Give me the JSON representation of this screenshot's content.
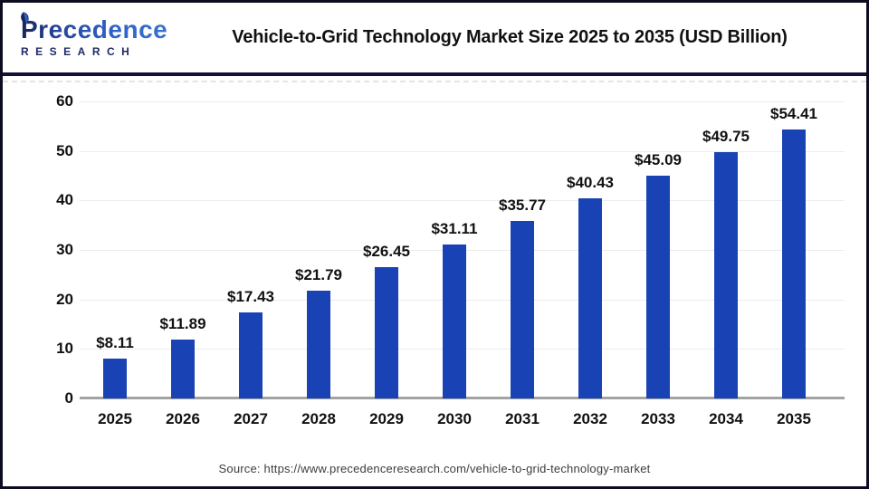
{
  "header": {
    "logo": {
      "primary": "Precedence",
      "secondary": "RESEARCH"
    },
    "title": "Vehicle-to-Grid Technology Market Size 2025 to 2035 (USD Billion)"
  },
  "chart_data": {
    "type": "bar",
    "title": "Vehicle-to-Grid Technology Market Size 2025 to 2035 (USD Billion)",
    "unit": "USD Billion",
    "categories": [
      "2025",
      "2026",
      "2027",
      "2028",
      "2029",
      "2030",
      "2031",
      "2032",
      "2033",
      "2034",
      "2035"
    ],
    "values": [
      8.11,
      11.89,
      17.43,
      21.79,
      26.45,
      31.11,
      35.77,
      40.43,
      45.09,
      49.75,
      54.41
    ],
    "value_labels": [
      "$8.11",
      "$11.89",
      "$17.43",
      "$21.79",
      "$26.45",
      "$31.11",
      "$35.77",
      "$40.43",
      "$45.09",
      "$49.75",
      "$54.41"
    ],
    "ylim": [
      0,
      60
    ],
    "yticks": [
      0,
      10,
      20,
      30,
      40,
      50,
      60
    ],
    "grid": true,
    "legend": false,
    "xlabel": "",
    "ylabel": ""
  },
  "footer": {
    "source": "Source: https://www.precedenceresearch.com/vehicle-to-grid-technology-market"
  },
  "colors": {
    "bar": "#1943b5",
    "gridline": "#ececec",
    "axis_line": "#a3a3a3",
    "header_separator": "#14103a",
    "outer_border": "#0d0d22",
    "logo_dark": "#16245c",
    "logo_blue": "#2e62c8",
    "label_text": "#111111"
  }
}
